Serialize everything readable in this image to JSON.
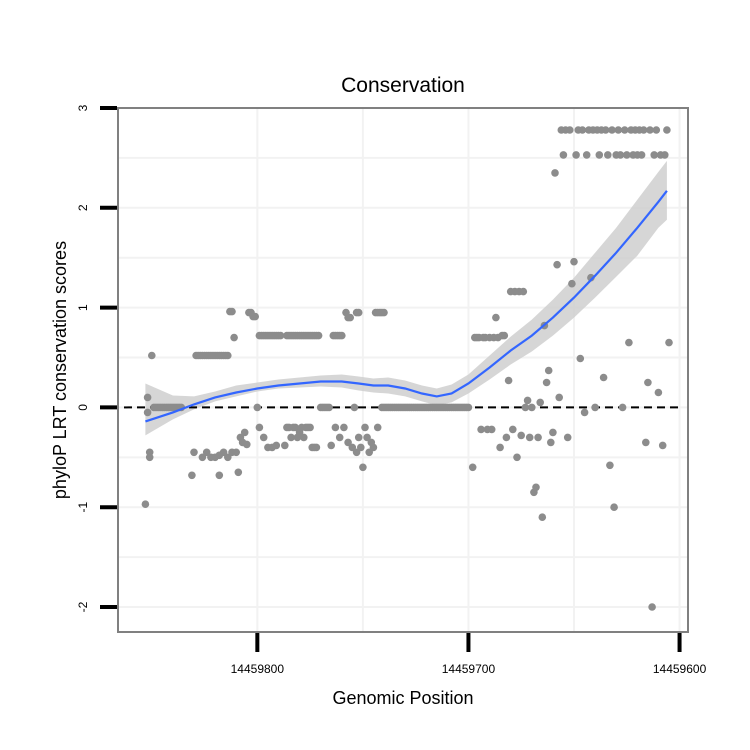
{
  "chart_data": {
    "type": "scatter",
    "title": "Conservation",
    "xlabel": "Genomic Position",
    "ylabel": "phyloP LRT conservation scores",
    "x_reversed": true,
    "xlim": [
      14459866,
      14459596
    ],
    "ylim": [
      -2.25,
      3.0
    ],
    "x_ticks": [
      14459800,
      14459700,
      14459600
    ],
    "x_tick_labels": [
      "14459800",
      "14459700",
      "14459600"
    ],
    "y_ticks": [
      -2,
      -1,
      0,
      1,
      2,
      3
    ],
    "y_tick_labels": [
      "-2",
      "-1",
      "0",
      "1",
      "2",
      "3"
    ],
    "grid": true,
    "reference_line": {
      "y": 0,
      "style": "dashed"
    },
    "colors": {
      "points": "#8c8c8c",
      "smooth_line": "#3366ff",
      "confidence_band": "#cccccc",
      "panel_border": "#808080",
      "grid": "#f2f2f2"
    },
    "points": [
      [
        14459853,
        -0.97
      ],
      [
        14459852,
        0.1
      ],
      [
        14459852,
        -0.05
      ],
      [
        14459851,
        -0.5
      ],
      [
        14459851,
        -0.45
      ],
      [
        14459850,
        0.52
      ],
      [
        14459849,
        0.0
      ],
      [
        14459848,
        0.0
      ],
      [
        14459847,
        0.0
      ],
      [
        14459846,
        0.0
      ],
      [
        14459845,
        0.0
      ],
      [
        14459844,
        0.0
      ],
      [
        14459843,
        0.0
      ],
      [
        14459842,
        0.0
      ],
      [
        14459841,
        0.0
      ],
      [
        14459840,
        0.0
      ],
      [
        14459839,
        0.0
      ],
      [
        14459838,
        0.0
      ],
      [
        14459837,
        0.0
      ],
      [
        14459836,
        0.0
      ],
      [
        14459831,
        -0.68
      ],
      [
        14459830,
        -0.45
      ],
      [
        14459829,
        0.52
      ],
      [
        14459828,
        0.52
      ],
      [
        14459827,
        0.52
      ],
      [
        14459826,
        0.52
      ],
      [
        14459825,
        0.52
      ],
      [
        14459824,
        0.52
      ],
      [
        14459823,
        0.52
      ],
      [
        14459822,
        0.52
      ],
      [
        14459821,
        0.52
      ],
      [
        14459820,
        0.52
      ],
      [
        14459819,
        0.52
      ],
      [
        14459818,
        0.52
      ],
      [
        14459817,
        0.52
      ],
      [
        14459816,
        0.52
      ],
      [
        14459815,
        0.52
      ],
      [
        14459814,
        0.52
      ],
      [
        14459826,
        -0.5
      ],
      [
        14459824,
        -0.45
      ],
      [
        14459822,
        -0.5
      ],
      [
        14459820,
        -0.5
      ],
      [
        14459818,
        -0.48
      ],
      [
        14459816,
        -0.45
      ],
      [
        14459814,
        -0.5
      ],
      [
        14459812,
        -0.45
      ],
      [
        14459810,
        -0.45
      ],
      [
        14459818,
        -0.68
      ],
      [
        14459809,
        -0.65
      ],
      [
        14459813,
        0.96
      ],
      [
        14459812,
        0.96
      ],
      [
        14459811,
        0.7
      ],
      [
        14459808,
        -0.3
      ],
      [
        14459807,
        -0.35
      ],
      [
        14459806,
        -0.25
      ],
      [
        14459805,
        -0.37
      ],
      [
        14459804,
        0.95
      ],
      [
        14459803,
        0.95
      ],
      [
        14459802,
        0.91
      ],
      [
        14459801,
        0.91
      ],
      [
        14459800,
        0.0
      ],
      [
        14459799,
        0.72
      ],
      [
        14459798,
        0.72
      ],
      [
        14459797,
        0.72
      ],
      [
        14459796,
        0.72
      ],
      [
        14459795,
        0.72
      ],
      [
        14459794,
        0.72
      ],
      [
        14459793,
        0.72
      ],
      [
        14459792,
        0.72
      ],
      [
        14459791,
        0.72
      ],
      [
        14459790,
        0.72
      ],
      [
        14459789,
        0.72
      ],
      [
        14459799,
        -0.2
      ],
      [
        14459797,
        -0.3
      ],
      [
        14459795,
        -0.4
      ],
      [
        14459793,
        -0.4
      ],
      [
        14459791,
        -0.38
      ],
      [
        14459786,
        0.72
      ],
      [
        14459785,
        0.72
      ],
      [
        14459784,
        0.72
      ],
      [
        14459783,
        0.72
      ],
      [
        14459782,
        0.72
      ],
      [
        14459781,
        0.72
      ],
      [
        14459780,
        0.72
      ],
      [
        14459779,
        0.72
      ],
      [
        14459778,
        0.72
      ],
      [
        14459777,
        0.72
      ],
      [
        14459776,
        0.72
      ],
      [
        14459775,
        0.72
      ],
      [
        14459774,
        0.72
      ],
      [
        14459773,
        0.72
      ],
      [
        14459772,
        0.72
      ],
      [
        14459771,
        0.72
      ],
      [
        14459787,
        -0.38
      ],
      [
        14459786,
        -0.2
      ],
      [
        14459785,
        -0.2
      ],
      [
        14459784,
        -0.3
      ],
      [
        14459783,
        -0.2
      ],
      [
        14459782,
        -0.2
      ],
      [
        14459781,
        -0.3
      ],
      [
        14459780,
        -0.25
      ],
      [
        14459779,
        -0.2
      ],
      [
        14459778,
        -0.3
      ],
      [
        14459777,
        -0.2
      ],
      [
        14459776,
        -0.2
      ],
      [
        14459775,
        -0.2
      ],
      [
        14459774,
        -0.4
      ],
      [
        14459773,
        -0.4
      ],
      [
        14459772,
        -0.4
      ],
      [
        14459770,
        0.0
      ],
      [
        14459769,
        0.0
      ],
      [
        14459768,
        0.0
      ],
      [
        14459767,
        0.0
      ],
      [
        14459766,
        0.0
      ],
      [
        14459764,
        0.72
      ],
      [
        14459763,
        0.72
      ],
      [
        14459762,
        0.72
      ],
      [
        14459761,
        0.72
      ],
      [
        14459760,
        0.72
      ],
      [
        14459765,
        -0.38
      ],
      [
        14459763,
        -0.2
      ],
      [
        14459761,
        -0.3
      ],
      [
        14459759,
        -0.2
      ],
      [
        14459757,
        -0.35
      ],
      [
        14459755,
        -0.4
      ],
      [
        14459753,
        -0.45
      ],
      [
        14459758,
        0.95
      ],
      [
        14459757,
        0.9
      ],
      [
        14459756,
        0.9
      ],
      [
        14459753,
        0.95
      ],
      [
        14459752,
        0.95
      ],
      [
        14459754,
        0.0
      ],
      [
        14459752,
        -0.3
      ],
      [
        14459751,
        -0.4
      ],
      [
        14459750,
        -0.6
      ],
      [
        14459749,
        -0.2
      ],
      [
        14459748,
        -0.3
      ],
      [
        14459747,
        -0.45
      ],
      [
        14459746,
        -0.35
      ],
      [
        14459744,
        0.95
      ],
      [
        14459743,
        0.95
      ],
      [
        14459742,
        0.95
      ],
      [
        14459741,
        0.95
      ],
      [
        14459740,
        0.95
      ],
      [
        14459745,
        -0.4
      ],
      [
        14459743,
        -0.2
      ],
      [
        14459741,
        0.0
      ],
      [
        14459740,
        0.0
      ],
      [
        14459739,
        0.0
      ],
      [
        14459738,
        0.0
      ],
      [
        14459737,
        0.0
      ],
      [
        14459736,
        0.0
      ],
      [
        14459735,
        0.0
      ],
      [
        14459734,
        0.0
      ],
      [
        14459733,
        0.0
      ],
      [
        14459732,
        0.0
      ],
      [
        14459731,
        0.0
      ],
      [
        14459730,
        0.0
      ],
      [
        14459729,
        0.0
      ],
      [
        14459728,
        0.0
      ],
      [
        14459727,
        0.0
      ],
      [
        14459726,
        0.0
      ],
      [
        14459725,
        0.0
      ],
      [
        14459724,
        0.0
      ],
      [
        14459723,
        0.0
      ],
      [
        14459722,
        0.0
      ],
      [
        14459721,
        0.0
      ],
      [
        14459720,
        0.0
      ],
      [
        14459719,
        0.0
      ],
      [
        14459718,
        0.0
      ],
      [
        14459717,
        0.0
      ],
      [
        14459716,
        0.0
      ],
      [
        14459715,
        0.0
      ],
      [
        14459714,
        0.0
      ],
      [
        14459713,
        0.0
      ],
      [
        14459712,
        0.0
      ],
      [
        14459711,
        0.0
      ],
      [
        14459710,
        0.0
      ],
      [
        14459709,
        0.0
      ],
      [
        14459708,
        0.0
      ],
      [
        14459707,
        0.0
      ],
      [
        14459706,
        0.0
      ],
      [
        14459705,
        0.0
      ],
      [
        14459704,
        0.0
      ],
      [
        14459703,
        0.0
      ],
      [
        14459702,
        0.0
      ],
      [
        14459701,
        0.0
      ],
      [
        14459700,
        0.0
      ],
      [
        14459698,
        -0.6
      ],
      [
        14459697,
        0.7
      ],
      [
        14459696,
        0.7
      ],
      [
        14459695,
        0.7
      ],
      [
        14459694,
        -0.22
      ],
      [
        14459693,
        0.7
      ],
      [
        14459692,
        0.7
      ],
      [
        14459691,
        -0.22
      ],
      [
        14459690,
        0.7
      ],
      [
        14459689,
        -0.22
      ],
      [
        14459688,
        0.7
      ],
      [
        14459687,
        0.9
      ],
      [
        14459686,
        0.7
      ],
      [
        14459685,
        -0.4
      ],
      [
        14459684,
        0.72
      ],
      [
        14459683,
        0.72
      ],
      [
        14459682,
        -0.3
      ],
      [
        14459681,
        0.27
      ],
      [
        14459680,
        1.16
      ],
      [
        14459679,
        -0.22
      ],
      [
        14459678,
        1.16
      ],
      [
        14459677,
        -0.5
      ],
      [
        14459676,
        1.16
      ],
      [
        14459675,
        -0.28
      ],
      [
        14459674,
        1.16
      ],
      [
        14459673,
        0.0
      ],
      [
        14459672,
        0.07
      ],
      [
        14459671,
        -0.3
      ],
      [
        14459670,
        0.0
      ],
      [
        14459669,
        -0.85
      ],
      [
        14459668,
        -0.8
      ],
      [
        14459667,
        -0.3
      ],
      [
        14459666,
        0.05
      ],
      [
        14459665,
        -1.1
      ],
      [
        14459664,
        0.82
      ],
      [
        14459663,
        0.25
      ],
      [
        14459662,
        0.37
      ],
      [
        14459661,
        -0.35
      ],
      [
        14459660,
        -0.25
      ],
      [
        14459659,
        2.35
      ],
      [
        14459658,
        1.43
      ],
      [
        14459657,
        0.1
      ],
      [
        14459656,
        2.78
      ],
      [
        14459655,
        2.53
      ],
      [
        14459654,
        2.78
      ],
      [
        14459653,
        -0.3
      ],
      [
        14459652,
        2.78
      ],
      [
        14459651,
        1.24
      ],
      [
        14459650,
        1.46
      ],
      [
        14459649,
        2.53
      ],
      [
        14459648,
        2.78
      ],
      [
        14459647,
        0.49
      ],
      [
        14459646,
        2.78
      ],
      [
        14459645,
        -0.05
      ],
      [
        14459644,
        2.53
      ],
      [
        14459643,
        2.78
      ],
      [
        14459642,
        1.3
      ],
      [
        14459641,
        2.78
      ],
      [
        14459640,
        0.0
      ],
      [
        14459639,
        2.78
      ],
      [
        14459638,
        2.53
      ],
      [
        14459637,
        2.78
      ],
      [
        14459636,
        0.3
      ],
      [
        14459635,
        2.78
      ],
      [
        14459634,
        2.53
      ],
      [
        14459633,
        -0.58
      ],
      [
        14459632,
        2.78
      ],
      [
        14459631,
        -1.0
      ],
      [
        14459630,
        2.53
      ],
      [
        14459629,
        2.78
      ],
      [
        14459628,
        2.53
      ],
      [
        14459627,
        0.0
      ],
      [
        14459626,
        2.78
      ],
      [
        14459625,
        2.53
      ],
      [
        14459624,
        0.65
      ],
      [
        14459623,
        2.78
      ],
      [
        14459622,
        2.53
      ],
      [
        14459621,
        2.78
      ],
      [
        14459620,
        2.53
      ],
      [
        14459619,
        2.78
      ],
      [
        14459618,
        2.53
      ],
      [
        14459617,
        2.78
      ],
      [
        14459616,
        -0.35
      ],
      [
        14459615,
        0.25
      ],
      [
        14459614,
        2.78
      ],
      [
        14459613,
        -2.0
      ],
      [
        14459612,
        2.53
      ],
      [
        14459611,
        2.78
      ],
      [
        14459610,
        0.15
      ],
      [
        14459609,
        2.53
      ],
      [
        14459608,
        -0.38
      ],
      [
        14459607,
        2.53
      ],
      [
        14459606,
        2.78
      ],
      [
        14459605,
        0.65
      ]
    ],
    "smooth_line": {
      "x": [
        14459853,
        14459840,
        14459830,
        14459820,
        14459810,
        14459800,
        14459790,
        14459780,
        14459770,
        14459760,
        14459752,
        14459745,
        14459738,
        14459730,
        14459722,
        14459715,
        14459708,
        14459700,
        14459690,
        14459680,
        14459670,
        14459660,
        14459650,
        14459640,
        14459630,
        14459620,
        14459610,
        14459606
      ],
      "y": [
        -0.14,
        -0.05,
        0.03,
        0.1,
        0.15,
        0.19,
        0.22,
        0.24,
        0.26,
        0.26,
        0.24,
        0.22,
        0.22,
        0.19,
        0.14,
        0.11,
        0.14,
        0.24,
        0.4,
        0.57,
        0.72,
        0.9,
        1.1,
        1.32,
        1.55,
        1.8,
        2.06,
        2.17
      ],
      "lower": [
        -0.28,
        -0.12,
        -0.02,
        0.06,
        0.11,
        0.16,
        0.19,
        0.2,
        0.21,
        0.2,
        0.17,
        0.15,
        0.14,
        0.11,
        0.06,
        0.02,
        0.05,
        0.14,
        0.28,
        0.43,
        0.56,
        0.72,
        0.9,
        1.1,
        1.31,
        1.52,
        1.8,
        1.88
      ],
      "upper": [
        0.24,
        0.12,
        0.11,
        0.16,
        0.22,
        0.25,
        0.28,
        0.3,
        0.32,
        0.33,
        0.31,
        0.29,
        0.3,
        0.27,
        0.22,
        0.19,
        0.23,
        0.33,
        0.52,
        0.71,
        0.88,
        1.08,
        1.3,
        1.55,
        1.8,
        2.08,
        2.36,
        2.47
      ]
    }
  }
}
